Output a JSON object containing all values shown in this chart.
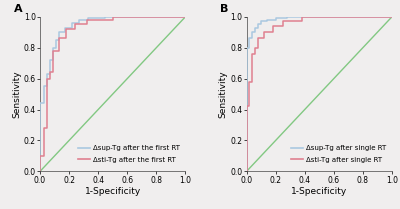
{
  "panel_A": {
    "title": "A",
    "blue_curve": {
      "fpr": [
        0.0,
        0.0,
        0.03,
        0.03,
        0.05,
        0.05,
        0.07,
        0.07,
        0.09,
        0.09,
        0.11,
        0.11,
        0.13,
        0.13,
        0.17,
        0.17,
        0.22,
        0.22,
        0.27,
        0.27,
        0.33,
        0.33,
        0.45,
        0.45,
        1.0
      ],
      "tpr": [
        0.0,
        0.44,
        0.44,
        0.55,
        0.55,
        0.63,
        0.63,
        0.72,
        0.72,
        0.8,
        0.8,
        0.85,
        0.85,
        0.9,
        0.9,
        0.93,
        0.93,
        0.96,
        0.96,
        0.98,
        0.98,
        0.99,
        0.99,
        1.0,
        1.0
      ],
      "color": "#aac8e0",
      "label": "Δsup-Tg after the first RT"
    },
    "red_curve": {
      "fpr": [
        0.0,
        0.0,
        0.03,
        0.03,
        0.05,
        0.05,
        0.07,
        0.07,
        0.09,
        0.09,
        0.13,
        0.13,
        0.18,
        0.18,
        0.24,
        0.24,
        0.32,
        0.32,
        0.5,
        0.5,
        1.0
      ],
      "tpr": [
        0.0,
        0.1,
        0.1,
        0.28,
        0.28,
        0.6,
        0.6,
        0.64,
        0.64,
        0.78,
        0.78,
        0.86,
        0.86,
        0.92,
        0.92,
        0.95,
        0.95,
        0.98,
        0.98,
        1.0,
        1.0
      ],
      "color": "#e08090",
      "label": "Δsti-Tg after the first RT"
    },
    "xlabel": "1-Specificity",
    "ylabel": "Sensitivity",
    "xlim": [
      0.0,
      1.0
    ],
    "ylim": [
      0.0,
      1.0
    ],
    "xticks": [
      0.0,
      0.2,
      0.4,
      0.6,
      0.8,
      1.0
    ],
    "yticks": [
      0.0,
      0.2,
      0.4,
      0.6,
      0.8,
      1.0
    ]
  },
  "panel_B": {
    "title": "B",
    "blue_curve": {
      "fpr": [
        0.0,
        0.0,
        0.02,
        0.02,
        0.04,
        0.04,
        0.06,
        0.06,
        0.08,
        0.08,
        0.1,
        0.1,
        0.14,
        0.14,
        0.2,
        0.2,
        0.28,
        0.28,
        0.4,
        0.4,
        1.0
      ],
      "tpr": [
        0.0,
        0.8,
        0.8,
        0.86,
        0.86,
        0.9,
        0.9,
        0.93,
        0.93,
        0.95,
        0.95,
        0.97,
        0.97,
        0.98,
        0.98,
        0.99,
        0.99,
        1.0,
        1.0,
        1.0,
        1.0
      ],
      "color": "#aac8e0",
      "label": "Δsup-Tg after single RT"
    },
    "red_curve": {
      "fpr": [
        0.0,
        0.0,
        0.02,
        0.02,
        0.04,
        0.04,
        0.06,
        0.06,
        0.08,
        0.08,
        0.12,
        0.12,
        0.18,
        0.18,
        0.25,
        0.25,
        0.38,
        0.38,
        1.0
      ],
      "tpr": [
        0.0,
        0.42,
        0.42,
        0.58,
        0.58,
        0.76,
        0.76,
        0.8,
        0.8,
        0.86,
        0.86,
        0.9,
        0.9,
        0.94,
        0.94,
        0.97,
        0.97,
        1.0,
        1.0
      ],
      "color": "#e08090",
      "label": "Δsti-Tg after single RT"
    },
    "xlabel": "1-Specificity",
    "ylabel": "Sensitivity",
    "xlim": [
      0.0,
      1.0
    ],
    "ylim": [
      0.0,
      1.0
    ],
    "xticks": [
      0.0,
      0.2,
      0.4,
      0.6,
      0.8,
      1.0
    ],
    "yticks": [
      0.0,
      0.2,
      0.4,
      0.6,
      0.8,
      1.0
    ]
  },
  "diagonal_color": "#82c882",
  "bg_color": "#f0eeee",
  "axes_bg_color": "#f0eeee",
  "tick_fontsize": 5.5,
  "label_fontsize": 6.5,
  "legend_fontsize": 5.0,
  "title_fontsize": 8,
  "line_width": 1.0
}
